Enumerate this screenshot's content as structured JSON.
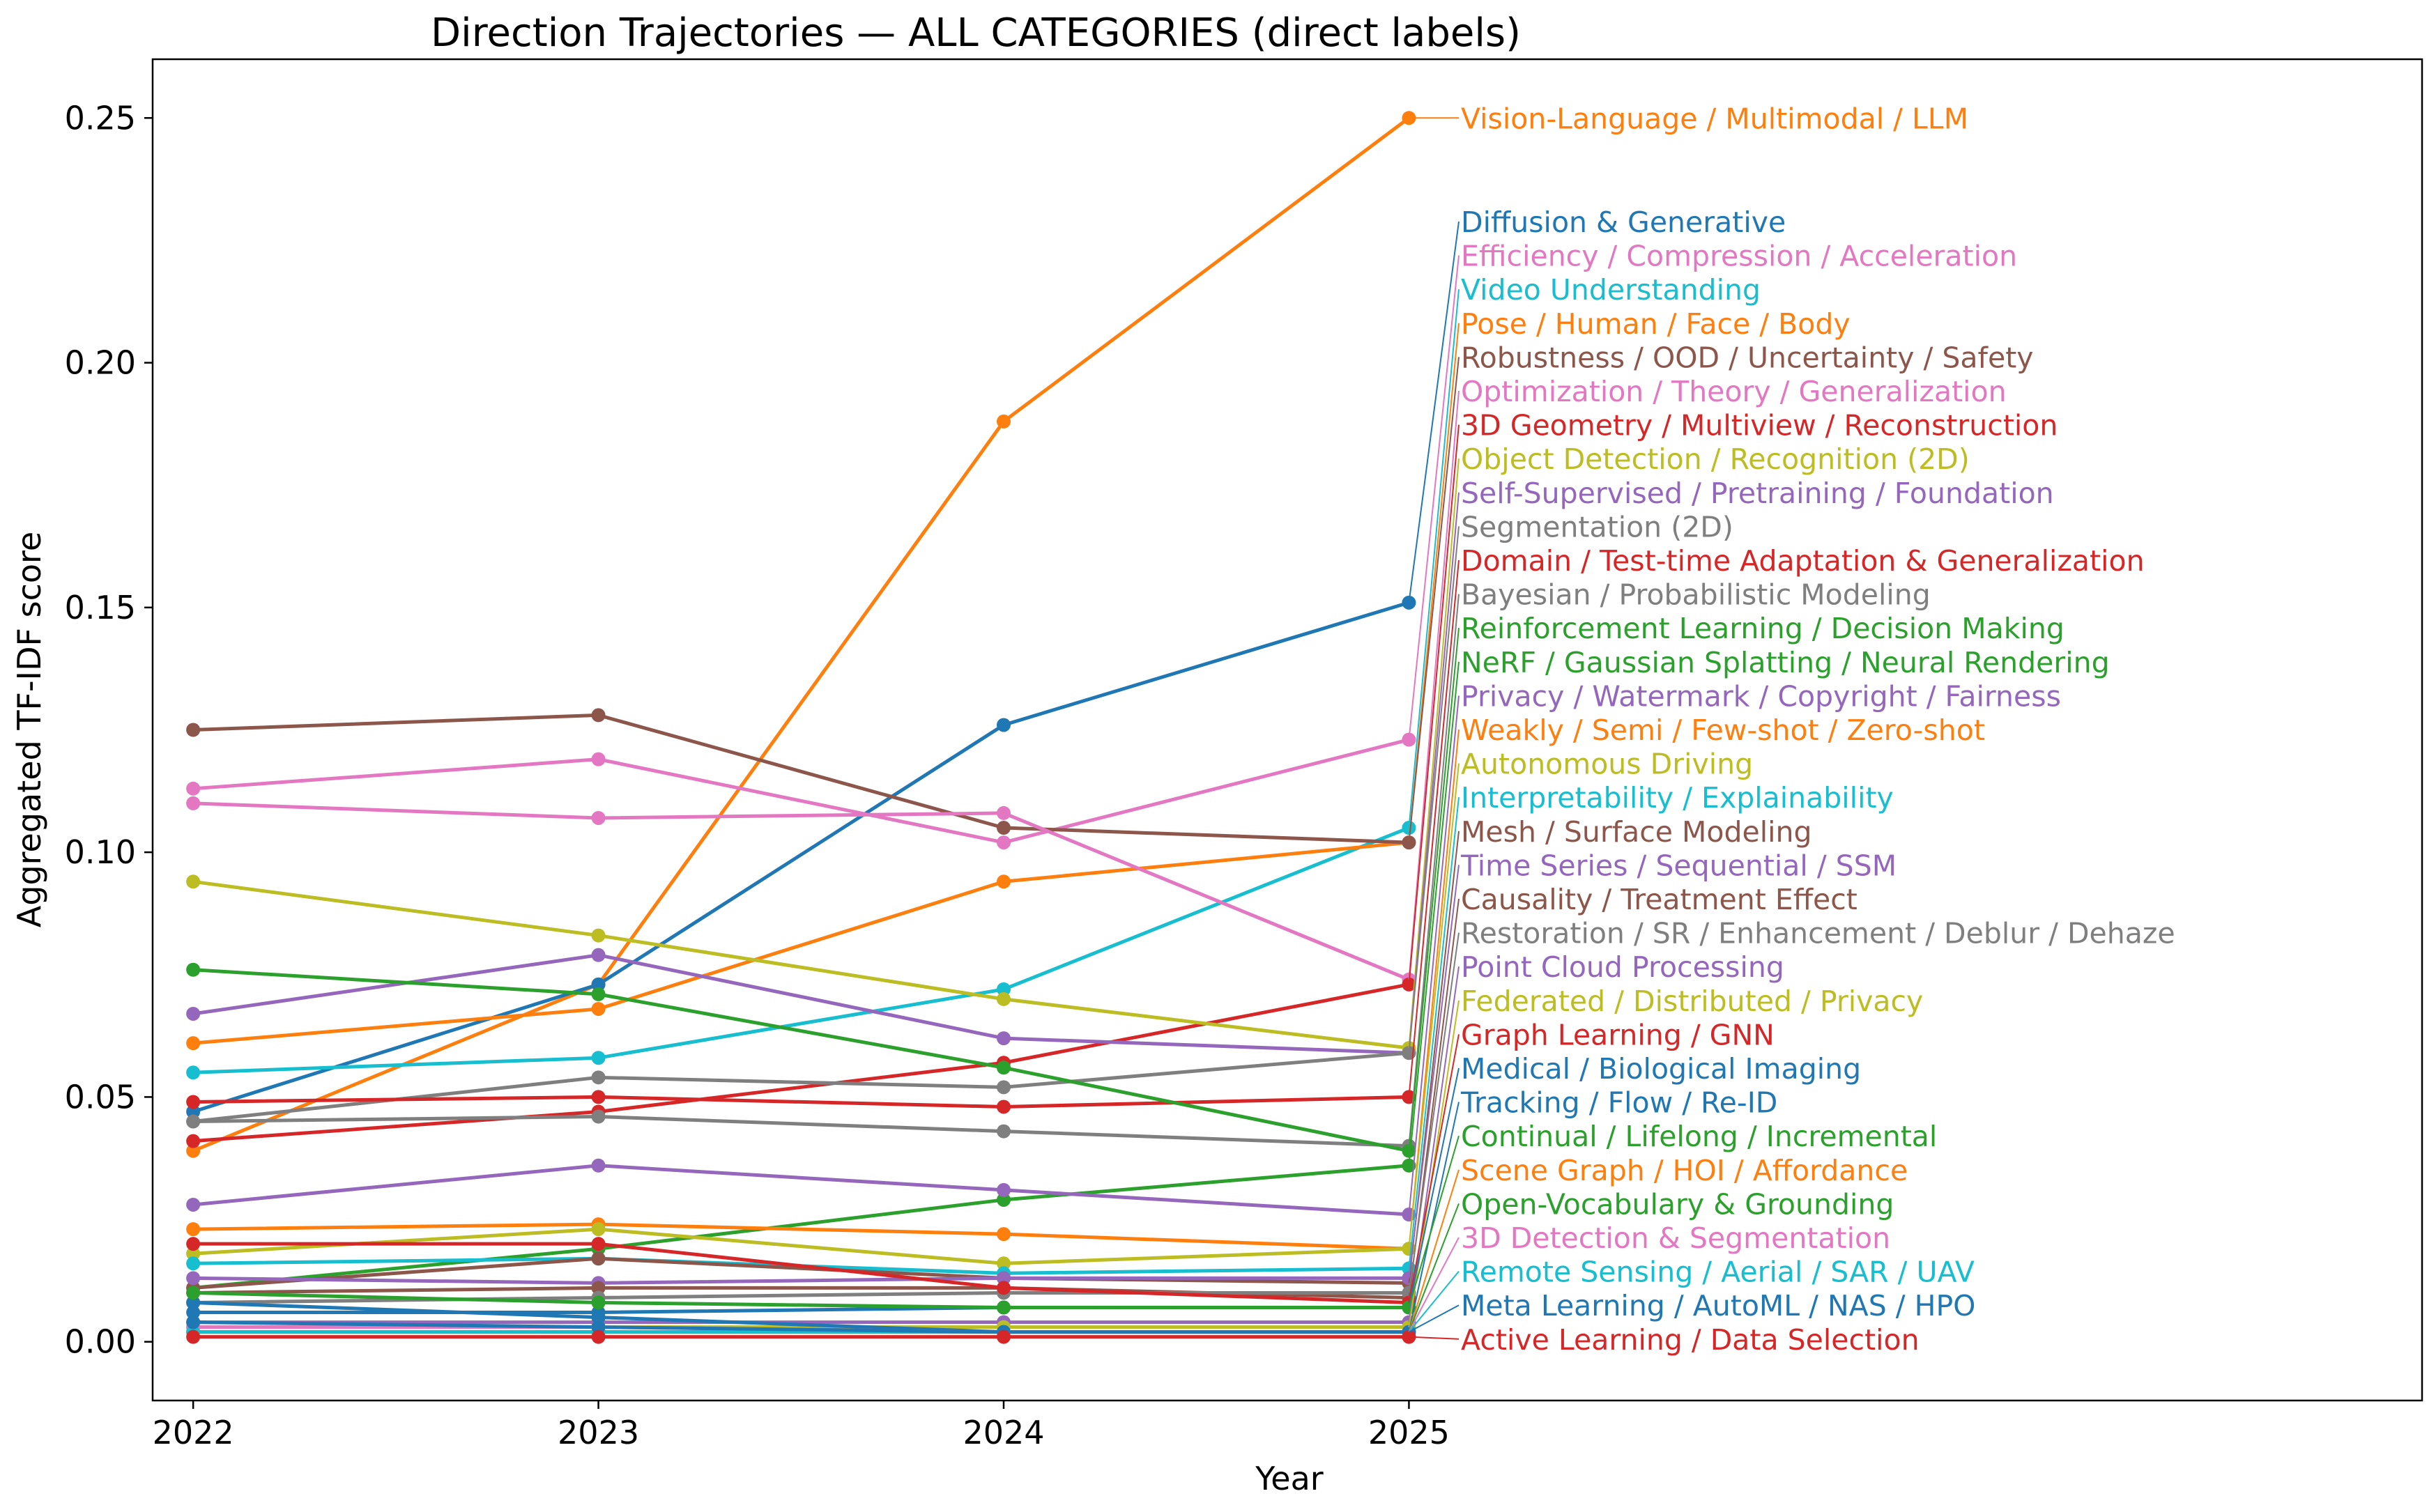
{
  "chart_data": {
    "type": "line",
    "title": "Direction Trajectories — ALL CATEGORIES (direct labels)",
    "xlabel": "Year",
    "ylabel": "Aggregated TF-IDF score",
    "x": [
      2022,
      2023,
      2024,
      2025
    ],
    "x_ticks": [
      "2022",
      "2023",
      "2024",
      "2025"
    ],
    "xlim": [
      2021.9,
      2027.5
    ],
    "ylim": [
      -0.012,
      0.262
    ],
    "y_ticks": [
      0.0,
      0.05,
      0.1,
      0.15,
      0.2,
      0.25
    ],
    "y_tick_labels": [
      "0.00",
      "0.05",
      "0.10",
      "0.15",
      "0.20",
      "0.25"
    ],
    "grid": false,
    "legend": "direct labels at right end of lines",
    "series": [
      {
        "name": "Vision-Language / Multimodal / LLM",
        "color": "#ff7f0e",
        "values": [
          0.039,
          0.073,
          0.188,
          0.25
        ]
      },
      {
        "name": "Diffusion & Generative",
        "color": "#1f77b4",
        "values": [
          0.047,
          0.073,
          0.126,
          0.151
        ]
      },
      {
        "name": "Efficiency / Compression / Acceleration",
        "color": "#e377c2",
        "values": [
          0.113,
          0.119,
          0.102,
          0.123
        ]
      },
      {
        "name": "Video Understanding",
        "color": "#17becf",
        "values": [
          0.055,
          0.058,
          0.072,
          0.105
        ]
      },
      {
        "name": "Pose / Human / Face / Body",
        "color": "#ff7f0e",
        "values": [
          0.061,
          0.068,
          0.094,
          0.102
        ]
      },
      {
        "name": "Robustness / OOD / Uncertainty / Safety",
        "color": "#8c564b",
        "values": [
          0.125,
          0.128,
          0.105,
          0.102
        ]
      },
      {
        "name": "Optimization / Theory / Generalization",
        "color": "#e377c2",
        "values": [
          0.11,
          0.107,
          0.108,
          0.074
        ]
      },
      {
        "name": "3D Geometry / Multiview / Reconstruction",
        "color": "#d62728",
        "values": [
          0.041,
          0.047,
          0.057,
          0.073
        ]
      },
      {
        "name": "Object Detection / Recognition (2D)",
        "color": "#bcbd22",
        "values": [
          0.094,
          0.083,
          0.07,
          0.06
        ]
      },
      {
        "name": "Self-Supervised / Pretraining / Foundation",
        "color": "#9467bd",
        "values": [
          0.067,
          0.079,
          0.062,
          0.059
        ]
      },
      {
        "name": "Segmentation (2D)",
        "color": "#7f7f7f",
        "values": [
          0.045,
          0.054,
          0.052,
          0.059
        ]
      },
      {
        "name": "Domain / Test-time Adaptation & Generalization",
        "color": "#d62728",
        "values": [
          0.049,
          0.05,
          0.048,
          0.05
        ]
      },
      {
        "name": "Bayesian / Probabilistic Modeling",
        "color": "#7f7f7f",
        "values": [
          0.045,
          0.046,
          0.043,
          0.04
        ]
      },
      {
        "name": "Reinforcement Learning / Decision Making",
        "color": "#2ca02c",
        "values": [
          0.076,
          0.071,
          0.056,
          0.039
        ]
      },
      {
        "name": "NeRF / Gaussian Splatting / Neural Rendering",
        "color": "#2ca02c",
        "values": [
          0.011,
          0.019,
          0.029,
          0.036
        ]
      },
      {
        "name": "Privacy / Watermark / Copyright / Fairness",
        "color": "#9467bd",
        "values": [
          0.028,
          0.036,
          0.031,
          0.026
        ]
      },
      {
        "name": "Weakly / Semi / Few-shot / Zero-shot",
        "color": "#ff7f0e",
        "values": [
          0.023,
          0.024,
          0.022,
          0.019
        ]
      },
      {
        "name": "Autonomous Driving",
        "color": "#bcbd22",
        "values": [
          0.018,
          0.023,
          0.016,
          0.019
        ]
      },
      {
        "name": "Interpretability / Explainability",
        "color": "#17becf",
        "values": [
          0.016,
          0.017,
          0.014,
          0.015
        ]
      },
      {
        "name": "Mesh / Surface Modeling",
        "color": "#8c564b",
        "values": [
          0.011,
          0.017,
          0.013,
          0.012
        ]
      },
      {
        "name": "Time Series / Sequential / SSM",
        "color": "#9467bd",
        "values": [
          0.013,
          0.012,
          0.013,
          0.013
        ]
      },
      {
        "name": "Causality / Treatment Effect",
        "color": "#8c564b",
        "values": [
          0.01,
          0.011,
          0.011,
          0.009
        ]
      },
      {
        "name": "Restoration / SR / Enhancement / Deblur / Dehaze",
        "color": "#7f7f7f",
        "values": [
          0.008,
          0.009,
          0.01,
          0.01
        ]
      },
      {
        "name": "Point Cloud Processing",
        "color": "#9467bd",
        "values": [
          0.004,
          0.004,
          0.004,
          0.004
        ]
      },
      {
        "name": "Federated / Distributed / Privacy",
        "color": "#bcbd22",
        "values": [
          0.003,
          0.003,
          0.003,
          0.003
        ]
      },
      {
        "name": "Graph Learning / GNN",
        "color": "#d62728",
        "values": [
          0.02,
          0.02,
          0.011,
          0.008
        ]
      },
      {
        "name": "Medical / Biological Imaging",
        "color": "#1f77b4",
        "values": [
          0.006,
          0.006,
          0.007,
          0.007
        ]
      },
      {
        "name": "Tracking / Flow / Re-ID",
        "color": "#1f77b4",
        "values": [
          0.008,
          0.005,
          0.002,
          0.002
        ]
      },
      {
        "name": "Continual / Lifelong / Incremental",
        "color": "#2ca02c",
        "values": [
          0.01,
          0.008,
          0.007,
          0.007
        ]
      },
      {
        "name": "Scene Graph / HOI / Affordance",
        "color": "#ff7f0e",
        "values": [
          0.002,
          0.002,
          0.002,
          0.002
        ]
      },
      {
        "name": "Open-Vocabulary & Grounding",
        "color": "#2ca02c",
        "values": [
          0.002,
          0.002,
          0.002,
          0.002
        ]
      },
      {
        "name": "3D Detection & Segmentation",
        "color": "#e377c2",
        "values": [
          0.003,
          0.003,
          0.002,
          0.002
        ]
      },
      {
        "name": "Remote Sensing / Aerial / SAR / UAV",
        "color": "#17becf",
        "values": [
          0.002,
          0.002,
          0.002,
          0.002
        ]
      },
      {
        "name": "Meta Learning / AutoML / NAS / HPO",
        "color": "#1f77b4",
        "values": [
          0.004,
          0.003,
          0.002,
          0.002
        ]
      },
      {
        "name": "Active Learning / Data Selection",
        "color": "#d62728",
        "values": [
          0.001,
          0.001,
          0.001,
          0.001
        ]
      }
    ]
  }
}
